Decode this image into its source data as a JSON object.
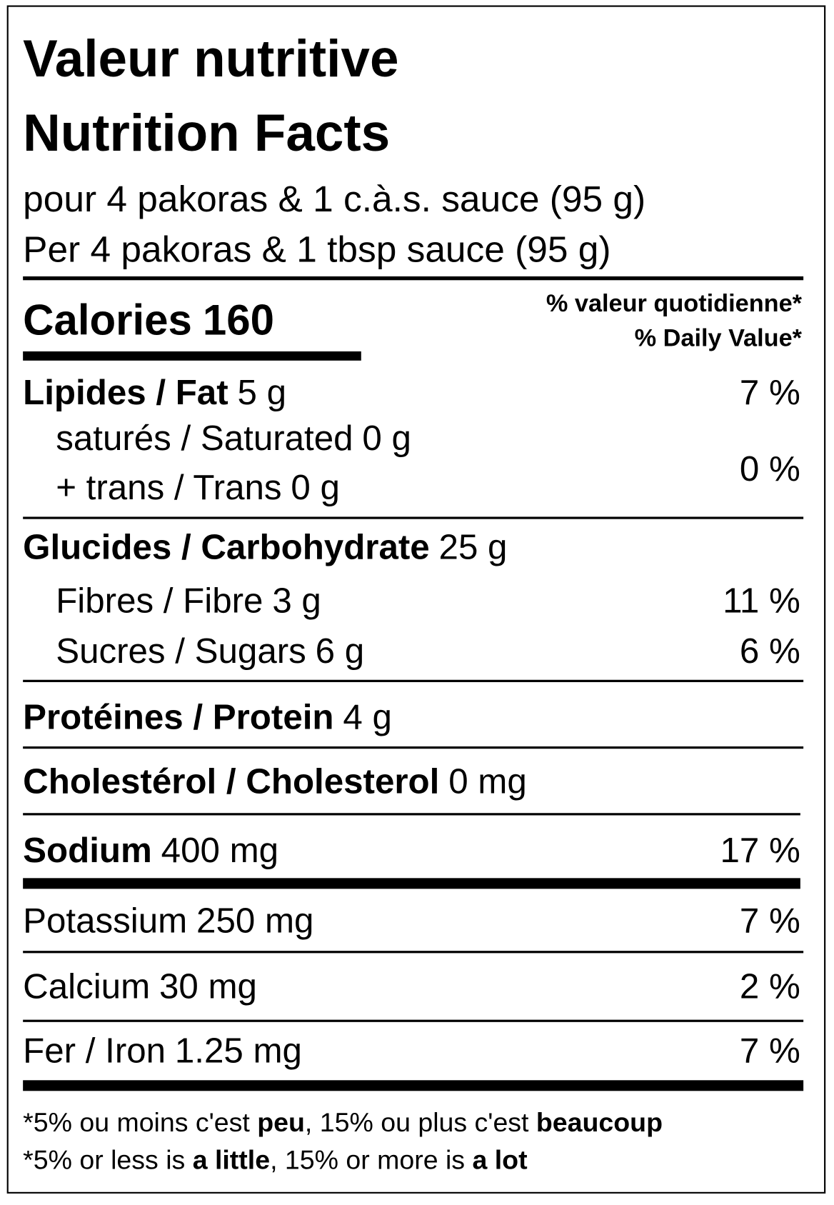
{
  "header": {
    "title_fr": "Valeur nutritive",
    "title_en": "Nutrition Facts",
    "serving_fr": "pour 4 pakoras & 1 c.à.s. sauce (95 g)",
    "serving_en": "Per 4 pakoras & 1 tbsp sauce (95 g)"
  },
  "calories": {
    "label": "Calories",
    "value": 160
  },
  "daily_value_header": {
    "fr": "% valeur quotidienne*",
    "en": "% Daily Value*"
  },
  "nutrients": [
    {
      "label": "Lipides / Fat",
      "amount": "5 g",
      "dv": "7 %"
    },
    {
      "label": "saturés / Saturated",
      "amount": "0 g"
    },
    {
      "label": "+ trans / Trans",
      "amount": "0 g"
    },
    {
      "label": "Glucides / Carbohydrate",
      "amount": "25 g"
    },
    {
      "label": "Fibres / Fibre",
      "amount": "3 g",
      "dv": "11 %"
    },
    {
      "label": "Sucres / Sugars",
      "amount": "6 g",
      "dv": "6 %"
    },
    {
      "label": "Protéines / Protein",
      "amount": "4 g"
    },
    {
      "label": "Cholestérol / Cholesterol",
      "amount": "0 mg"
    },
    {
      "label": "Sodium",
      "amount": "400 mg",
      "dv": "17 %"
    },
    {
      "label": "Potassium",
      "amount": "250 mg",
      "dv": "7 %"
    },
    {
      "label": "Calcium",
      "amount": "30 mg",
      "dv": "2 %"
    },
    {
      "label": "Fer / Iron",
      "amount": "1.25 mg",
      "dv": "7 %"
    }
  ],
  "saturated_trans_dv": "0 %",
  "footnotes": [
    [
      "*5% ou moins c'est ",
      "peu",
      ", 15% ou plus c'est ",
      "beaucoup"
    ],
    [
      "*5% or less is ",
      "a little",
      ", 15% or more is ",
      "a lot"
    ]
  ]
}
